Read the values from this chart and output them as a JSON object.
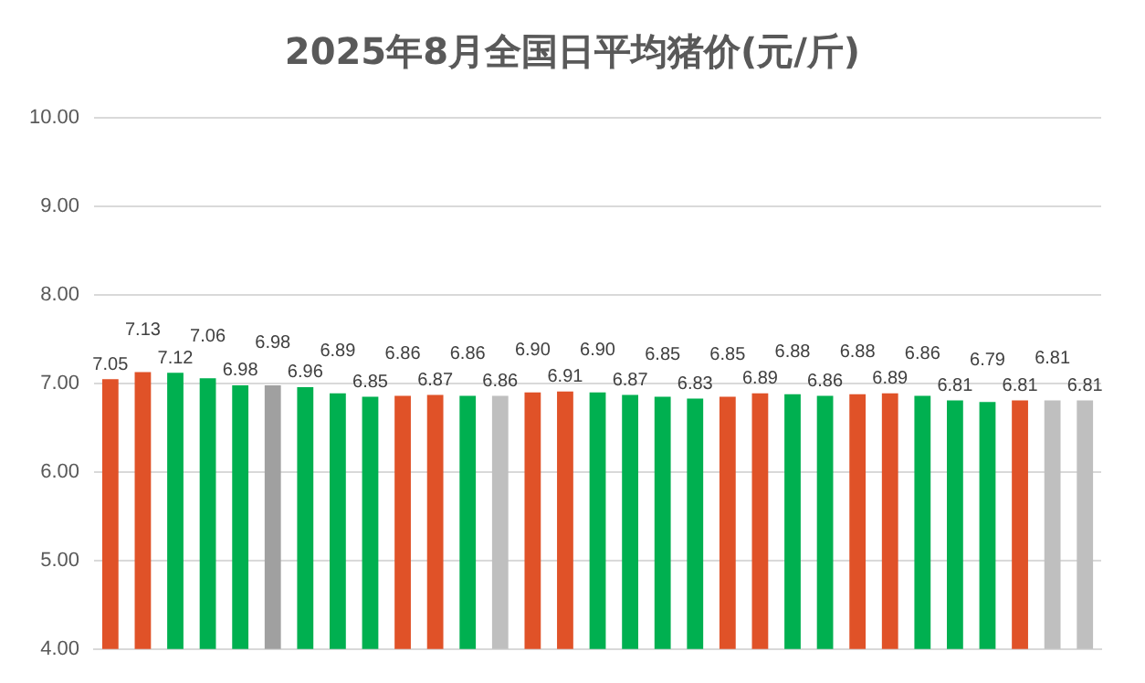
{
  "chart_data": {
    "type": "bar",
    "title": "2025年8月全国日平均猪价(元/斤)",
    "categories": [
      null,
      null,
      null,
      null,
      null,
      null,
      null,
      null,
      null,
      null,
      null,
      null,
      null,
      null,
      null,
      null,
      null,
      null,
      null,
      null,
      null,
      null,
      null,
      null,
      null,
      null,
      null,
      null,
      null,
      null,
      null
    ],
    "values": [
      7.05,
      7.13,
      7.12,
      7.06,
      6.98,
      6.98,
      6.96,
      6.89,
      6.85,
      6.86,
      6.87,
      6.86,
      6.86,
      6.9,
      6.91,
      6.9,
      6.87,
      6.85,
      6.83,
      6.85,
      6.89,
      6.88,
      6.86,
      6.88,
      6.89,
      6.86,
      6.81,
      6.79,
      6.81,
      6.81,
      6.81
    ],
    "value_labels": [
      "7.05",
      "7.13",
      "7.12",
      "7.06",
      "6.98",
      "6.98",
      "6.96",
      "6.89",
      "6.85",
      "6.86",
      "6.87",
      "6.86",
      "6.86",
      "6.90",
      "6.91",
      "6.90",
      "6.87",
      "6.85",
      "6.83",
      "6.85",
      "6.89",
      "6.88",
      "6.86",
      "6.88",
      "6.89",
      "6.86",
      "6.81",
      "6.79",
      "6.81",
      "6.81",
      "6.81"
    ],
    "colors": [
      "#e05228",
      "#e05228",
      "#00b050",
      "#00b050",
      "#00b050",
      "#a0a0a0",
      "#00b050",
      "#00b050",
      "#00b050",
      "#e05228",
      "#e05228",
      "#00b050",
      "#bfbfbf",
      "#e05228",
      "#e05228",
      "#00b050",
      "#00b050",
      "#00b050",
      "#00b050",
      "#e05228",
      "#e05228",
      "#00b050",
      "#00b050",
      "#e05228",
      "#e05228",
      "#00b050",
      "#00b050",
      "#00b050",
      "#e05228",
      "#bfbfbf",
      "#bfbfbf"
    ],
    "ylim": [
      4,
      10
    ],
    "yticks": [
      {
        "value": 4,
        "label": "4.00"
      },
      {
        "value": 5,
        "label": "5.00"
      },
      {
        "value": 6,
        "label": "6.00"
      },
      {
        "value": 7,
        "label": "7.00"
      },
      {
        "value": 8,
        "label": "8.00"
      },
      {
        "value": 9,
        "label": "9.00"
      },
      {
        "value": 10,
        "label": "10.00"
      }
    ],
    "grid": "y",
    "legend": false
  }
}
